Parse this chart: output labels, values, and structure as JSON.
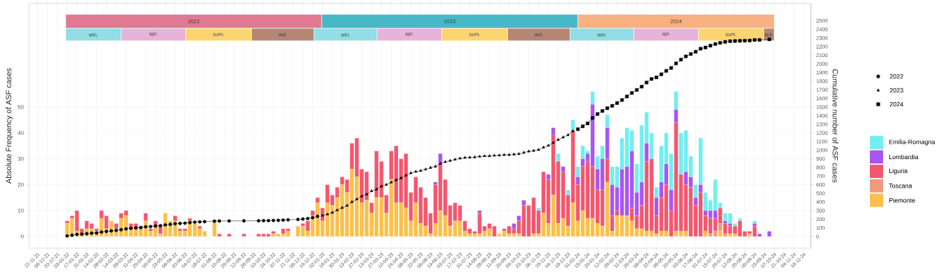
{
  "chart_data": {
    "type": "bar",
    "stacked": true,
    "ylabel": "Absolute Frequency of ASF cases",
    "y2label": "Cumulative number of ASF cases",
    "x": [
      "2022-01-03",
      "2022-01-10",
      "2022-01-17",
      "2022-01-24",
      "2022-01-31",
      "2022-02-07",
      "2022-02-14",
      "2022-02-21",
      "2022-02-28",
      "2022-03-07",
      "2022-03-14",
      "2022-03-21",
      "2022-03-28",
      "2022-04-04",
      "2022-04-11",
      "2022-04-18",
      "2022-04-25",
      "2022-05-02",
      "2022-05-09",
      "2022-05-16",
      "2022-05-23",
      "2022-05-30",
      "2022-06-06",
      "2022-06-13",
      "2022-06-20",
      "2022-06-27",
      "2022-07-04",
      "2022-07-11",
      "2022-07-18",
      "2022-07-25",
      "2022-08-01",
      "2022-08-08",
      "2022-08-15",
      "2022-08-22",
      "2022-08-29",
      "2022-09-05",
      "2022-09-12",
      "2022-09-19",
      "2022-09-26",
      "2022-10-03",
      "2022-10-10",
      "2022-10-17",
      "2022-10-24",
      "2022-10-31",
      "2022-11-07",
      "2022-11-14",
      "2022-11-21",
      "2022-11-28",
      "2022-12-05",
      "2022-12-12",
      "2022-12-19",
      "2022-12-26",
      "2023-01-02",
      "2023-01-09",
      "2023-01-16",
      "2023-01-23",
      "2023-01-30",
      "2023-02-06",
      "2023-02-13",
      "2023-02-20",
      "2023-02-27",
      "2023-03-06",
      "2023-03-13",
      "2023-03-20",
      "2023-03-27",
      "2023-04-03",
      "2023-04-10",
      "2023-04-17",
      "2023-04-24",
      "2023-05-01",
      "2023-05-08",
      "2023-05-15",
      "2023-05-22",
      "2023-05-29",
      "2023-06-05",
      "2023-06-12",
      "2023-06-19",
      "2023-06-26",
      "2023-07-03",
      "2023-07-10",
      "2023-07-17",
      "2023-07-24",
      "2023-07-31",
      "2023-08-07",
      "2023-08-14",
      "2023-08-21",
      "2023-08-28",
      "2023-09-04",
      "2023-09-11",
      "2023-09-18",
      "2023-09-25",
      "2023-10-02",
      "2023-10-09",
      "2023-10-16",
      "2023-10-23",
      "2023-10-30",
      "2023-11-06",
      "2023-11-13",
      "2023-11-20",
      "2023-11-27",
      "2023-12-04",
      "2023-12-11",
      "2023-12-18",
      "2023-12-25",
      "2024-01-01",
      "2024-01-08",
      "2024-01-15",
      "2024-01-22",
      "2024-01-29",
      "2024-02-05",
      "2024-02-12",
      "2024-02-19",
      "2024-02-26",
      "2024-03-04",
      "2024-03-11",
      "2024-03-18",
      "2024-03-25",
      "2024-04-01",
      "2024-04-08",
      "2024-04-15",
      "2024-04-22",
      "2024-04-29",
      "2024-05-06",
      "2024-05-13",
      "2024-05-20",
      "2024-05-27",
      "2024-06-03",
      "2024-06-10",
      "2024-06-17",
      "2024-06-24",
      "2024-07-01",
      "2024-07-08",
      "2024-07-15",
      "2024-07-22",
      "2024-07-29",
      "2024-08-05",
      "2024-08-12",
      "2024-08-19",
      "2024-08-26",
      "2024-09-02",
      "2024-09-09",
      "2024-09-16",
      "2024-09-23",
      "2024-09-30"
    ],
    "xlim": [
      "2021-11-10",
      "2024-11-28"
    ],
    "xticks": [
      {
        "value": "2021-11-22",
        "label": "22-11-21"
      },
      {
        "value": "2021-12-06",
        "label": "06-12-21"
      },
      {
        "value": "2021-12-20",
        "label": "20-12-21"
      },
      {
        "value": "2022-01-03",
        "label": "03-01-22"
      },
      {
        "value": "2022-01-17",
        "label": "17-01-22"
      },
      {
        "value": "2022-01-31",
        "label": "31-01-22"
      },
      {
        "value": "2022-02-14",
        "label": "14-02-22"
      },
      {
        "value": "2022-02-28",
        "label": "28-02-22"
      },
      {
        "value": "2022-03-14",
        "label": "14-03-22"
      },
      {
        "value": "2022-03-28",
        "label": "28-03-22"
      },
      {
        "value": "2022-04-11",
        "label": "11-04-22"
      },
      {
        "value": "2022-04-25",
        "label": "25-04-22"
      },
      {
        "value": "2022-05-09",
        "label": "09-05-22"
      },
      {
        "value": "2022-05-23",
        "label": "23-05-22"
      },
      {
        "value": "2022-06-06",
        "label": "06-06-22"
      },
      {
        "value": "2022-06-20",
        "label": "20-06-22"
      },
      {
        "value": "2022-07-04",
        "label": "04-07-22"
      },
      {
        "value": "2022-07-18",
        "label": "18-07-22"
      },
      {
        "value": "2022-08-01",
        "label": "01-08-22"
      },
      {
        "value": "2022-08-15",
        "label": "15-08-22"
      },
      {
        "value": "2022-08-29",
        "label": "29-08-22"
      },
      {
        "value": "2022-09-12",
        "label": "12-09-22"
      },
      {
        "value": "2022-09-26",
        "label": "26-09-22"
      },
      {
        "value": "2022-10-10",
        "label": "10-10-22"
      },
      {
        "value": "2022-10-24",
        "label": "24-10-22"
      },
      {
        "value": "2022-11-07",
        "label": "07-11-22"
      },
      {
        "value": "2022-11-21",
        "label": "21-11-22"
      },
      {
        "value": "2022-12-05",
        "label": "05-12-22"
      },
      {
        "value": "2022-12-19",
        "label": "19-12-22"
      },
      {
        "value": "2023-01-02",
        "label": "02-01-23"
      },
      {
        "value": "2023-01-16",
        "label": "16-01-23"
      },
      {
        "value": "2023-01-30",
        "label": "30-01-23"
      },
      {
        "value": "2023-02-13",
        "label": "13-02-23"
      },
      {
        "value": "2023-02-27",
        "label": "27-02-23"
      },
      {
        "value": "2023-03-13",
        "label": "13-03-23"
      },
      {
        "value": "2023-03-27",
        "label": "27-03-23"
      },
      {
        "value": "2023-04-10",
        "label": "10-04-23"
      },
      {
        "value": "2023-04-24",
        "label": "24-04-23"
      },
      {
        "value": "2023-05-08",
        "label": "08-05-23"
      },
      {
        "value": "2023-05-22",
        "label": "22-05-23"
      },
      {
        "value": "2023-06-05",
        "label": "05-06-23"
      },
      {
        "value": "2023-06-19",
        "label": "19-06-23"
      },
      {
        "value": "2023-07-03",
        "label": "03-07-23"
      },
      {
        "value": "2023-07-17",
        "label": "17-07-23"
      },
      {
        "value": "2023-07-31",
        "label": "31-07-23"
      },
      {
        "value": "2023-08-14",
        "label": "14-08-23"
      },
      {
        "value": "2023-08-28",
        "label": "28-08-23"
      },
      {
        "value": "2023-09-11",
        "label": "11-09-23"
      },
      {
        "value": "2023-09-25",
        "label": "25-09-23"
      },
      {
        "value": "2023-10-09",
        "label": "09-10-23"
      },
      {
        "value": "2023-10-23",
        "label": "23-10-23"
      },
      {
        "value": "2023-11-06",
        "label": "06-11-23"
      },
      {
        "value": "2023-11-20",
        "label": "20-11-23"
      },
      {
        "value": "2023-12-04",
        "label": "04-12-23"
      },
      {
        "value": "2023-12-18",
        "label": "18-12-23"
      },
      {
        "value": "2024-01-01",
        "label": "01-01-24"
      },
      {
        "value": "2024-01-15",
        "label": "15-01-24"
      },
      {
        "value": "2024-01-29",
        "label": "29-01-24"
      },
      {
        "value": "2024-02-12",
        "label": "12-02-24"
      },
      {
        "value": "2024-02-26",
        "label": "26-02-24"
      },
      {
        "value": "2024-03-11",
        "label": "11-03-24"
      },
      {
        "value": "2024-03-25",
        "label": "25-03-24"
      },
      {
        "value": "2024-04-08",
        "label": "08-04-24"
      },
      {
        "value": "2024-04-22",
        "label": "22-04-24"
      },
      {
        "value": "2024-05-06",
        "label": "06-05-24"
      },
      {
        "value": "2024-05-20",
        "label": "20-05-24"
      },
      {
        "value": "2024-06-03",
        "label": "03-06-24"
      },
      {
        "value": "2024-06-17",
        "label": "17-06-24"
      },
      {
        "value": "2024-07-01",
        "label": "01-07-24"
      },
      {
        "value": "2024-07-15",
        "label": "15-07-24"
      },
      {
        "value": "2024-07-29",
        "label": "29-07-24"
      },
      {
        "value": "2024-08-12",
        "label": "12-08-24"
      },
      {
        "value": "2024-08-26",
        "label": "26-08-24"
      },
      {
        "value": "2024-09-09",
        "label": "09-09-24"
      },
      {
        "value": "2024-09-23",
        "label": "23-09-24"
      },
      {
        "value": "2024-10-07",
        "label": "07-10-24"
      },
      {
        "value": "2024-10-21",
        "label": "21-10-24"
      },
      {
        "value": "2024-11-04",
        "label": "04-11-24"
      },
      {
        "value": "2024-11-18",
        "label": "18-11-24"
      }
    ],
    "ylim": [
      -4.5,
      90
    ],
    "yticks": [
      0,
      10,
      20,
      30,
      40,
      50
    ],
    "y2lim": [
      -135,
      2700
    ],
    "y2ticks": [
      0,
      100,
      200,
      300,
      400,
      500,
      600,
      700,
      800,
      900,
      1000,
      1100,
      1200,
      1300,
      1400,
      1500,
      1600,
      1700,
      1800,
      1900,
      2000,
      2100,
      2200,
      2300,
      2400,
      2500
    ],
    "grid": true,
    "legend": "right",
    "series": [
      {
        "name": "Piemonte",
        "color": "#fbc04b",
        "values": [
          5,
          7,
          2,
          1,
          3,
          3,
          2,
          7,
          3,
          6,
          3,
          7,
          8,
          3,
          3,
          3,
          6,
          2,
          4,
          1,
          9,
          6,
          6,
          2,
          2,
          6,
          5,
          3,
          2,
          0,
          6,
          0,
          0,
          0,
          0,
          0,
          0,
          0,
          0,
          0,
          0,
          0,
          1,
          1,
          1,
          2,
          0,
          4,
          4,
          2,
          8,
          13,
          6,
          13,
          12,
          15,
          20,
          17,
          26,
          23,
          13,
          14,
          9,
          15,
          15,
          9,
          22,
          13,
          13,
          11,
          6,
          13,
          5,
          4,
          1,
          5,
          10,
          8,
          4,
          6,
          6,
          2,
          1,
          1,
          1,
          2,
          3,
          0,
          1,
          2,
          1,
          1,
          1,
          0,
          0,
          1,
          1,
          9,
          5,
          16,
          5,
          7,
          4,
          13,
          6,
          10,
          7,
          7,
          5,
          4,
          21,
          2,
          8,
          8,
          8,
          6,
          3,
          3,
          2,
          2,
          1,
          2,
          2,
          0,
          2,
          2,
          2,
          0,
          0,
          0,
          2,
          0,
          0,
          2,
          0,
          1,
          1,
          0,
          0,
          1,
          0,
          0,
          0,
          0
        ]
      },
      {
        "name": "Toscana",
        "color": "#ee9a7f",
        "values": [
          0,
          0,
          0,
          0,
          0,
          0,
          0,
          0,
          0,
          0,
          0,
          0,
          0,
          0,
          0,
          0,
          0,
          0,
          0,
          0,
          0,
          0,
          0,
          0,
          0,
          0,
          0,
          0,
          0,
          0,
          0,
          0,
          0,
          0,
          0,
          0,
          0,
          0,
          0,
          0,
          0,
          0,
          0,
          0,
          0,
          0,
          0,
          0,
          0,
          0,
          0,
          0,
          0,
          0,
          0,
          0,
          0,
          0,
          0,
          0,
          0,
          0,
          0,
          0,
          0,
          0,
          0,
          0,
          0,
          0,
          0,
          0,
          0,
          0,
          0,
          0,
          0,
          0,
          0,
          0,
          0,
          0,
          0,
          0,
          0,
          0,
          0,
          0,
          0,
          0,
          0,
          0,
          0,
          0,
          0,
          0,
          0,
          0,
          0,
          0,
          0,
          0,
          0,
          0,
          0,
          0,
          0,
          0,
          0,
          0,
          0,
          0,
          0,
          0,
          0,
          0,
          0,
          0,
          0,
          0,
          0,
          0,
          0,
          0,
          0,
          0,
          0,
          0,
          0,
          0,
          0,
          1,
          2,
          3,
          1,
          0,
          0,
          0,
          0,
          0,
          0,
          0,
          0,
          0
        ]
      },
      {
        "name": "Liguria",
        "color": "#f4566e",
        "values": [
          1,
          1,
          8,
          2,
          3,
          2,
          1,
          3,
          5,
          0,
          2,
          2,
          2,
          2,
          2,
          1,
          3,
          1,
          2,
          3,
          0,
          0,
          2,
          1,
          1,
          1,
          0,
          1,
          0,
          0,
          0,
          1,
          0,
          1,
          0,
          0,
          1,
          0,
          0,
          1,
          1,
          1,
          1,
          0,
          2,
          1,
          0,
          0,
          1,
          4,
          2,
          2,
          5,
          7,
          4,
          4,
          3,
          5,
          10,
          15,
          13,
          11,
          4,
          18,
          14,
          7,
          11,
          22,
          17,
          21,
          11,
          10,
          14,
          11,
          8,
          15,
          18,
          14,
          8,
          7,
          6,
          4,
          2,
          1,
          8,
          2,
          2,
          4,
          0,
          1,
          3,
          2,
          5,
          12,
          12,
          14,
          9,
          16,
          17,
          23,
          24,
          18,
          12,
          28,
          14,
          17,
          22,
          20,
          13,
          14,
          9,
          6,
          2,
          0,
          0,
          5,
          5,
          9,
          27,
          28,
          7,
          13,
          18,
          10,
          42,
          22,
          18,
          19,
          12,
          17,
          6,
          6,
          5,
          6,
          4,
          3,
          3,
          6,
          2,
          1,
          4,
          0,
          0,
          0
        ]
      },
      {
        "name": "Lombardia",
        "color": "#a855f2",
        "values": [
          0,
          0,
          0,
          0,
          0,
          0,
          0,
          0,
          0,
          0,
          0,
          0,
          0,
          0,
          0,
          0,
          0,
          0,
          0,
          0,
          0,
          0,
          0,
          0,
          0,
          0,
          0,
          0,
          0,
          0,
          0,
          0,
          0,
          0,
          0,
          0,
          0,
          0,
          0,
          0,
          0,
          0,
          0,
          0,
          0,
          0,
          0,
          0,
          0,
          0,
          0,
          0,
          0,
          0,
          0,
          0,
          0,
          0,
          0,
          0,
          0,
          0,
          0,
          0,
          0,
          0,
          0,
          0,
          0,
          0,
          0,
          0,
          0,
          0,
          0,
          1,
          4,
          0,
          0,
          0,
          0,
          0,
          0,
          0,
          1,
          0,
          0,
          0,
          0,
          0,
          0,
          2,
          2,
          2,
          0,
          0,
          0,
          0,
          2,
          3,
          0,
          2,
          0,
          0,
          3,
          3,
          3,
          24,
          8,
          12,
          12,
          12,
          9,
          18,
          19,
          22,
          9,
          9,
          7,
          0,
          7,
          6,
          8,
          8,
          5,
          0,
          5,
          4,
          3,
          3,
          2,
          3,
          3,
          0,
          1,
          1,
          0,
          0,
          0,
          0,
          1,
          1,
          0,
          2
        ]
      },
      {
        "name": "Emilia-Romagna",
        "color": "#70eef0",
        "values": [
          0,
          0,
          0,
          0,
          0,
          0,
          0,
          0,
          0,
          0,
          0,
          0,
          0,
          0,
          0,
          0,
          0,
          0,
          0,
          0,
          0,
          0,
          0,
          0,
          0,
          0,
          0,
          0,
          0,
          0,
          0,
          0,
          0,
          0,
          0,
          0,
          0,
          0,
          0,
          0,
          0,
          0,
          0,
          0,
          0,
          0,
          0,
          0,
          0,
          0,
          0,
          0,
          0,
          0,
          0,
          0,
          0,
          0,
          0,
          0,
          0,
          0,
          0,
          0,
          0,
          0,
          0,
          0,
          0,
          0,
          0,
          0,
          0,
          0,
          0,
          0,
          0,
          0,
          0,
          0,
          0,
          0,
          0,
          0,
          0,
          0,
          0,
          0,
          0,
          0,
          0,
          0,
          0,
          0,
          0,
          0,
          1,
          0,
          0,
          0,
          3,
          0,
          2,
          4,
          4,
          5,
          1,
          5,
          5,
          5,
          5,
          7,
          8,
          12,
          15,
          8,
          11,
          22,
          12,
          10,
          4,
          14,
          12,
          14,
          7,
          16,
          16,
          8,
          5,
          18,
          7,
          4,
          12,
          2,
          3,
          4,
          1,
          1,
          0,
          0,
          1,
          0,
          0,
          0
        ]
      },
      {
        "name": "2022",
        "type": "line",
        "axis": "y2",
        "color": "#000000",
        "marker": "circle",
        "line_style": "solid",
        "x": [
          "2022-01-03",
          "2022-01-10",
          "2022-01-17",
          "2022-01-24",
          "2022-01-31",
          "2022-02-07",
          "2022-02-14",
          "2022-02-21",
          "2022-02-28",
          "2022-03-07",
          "2022-03-14",
          "2022-03-21",
          "2022-03-28",
          "2022-04-04",
          "2022-04-11",
          "2022-04-18",
          "2022-04-25",
          "2022-05-02",
          "2022-05-09",
          "2022-05-16",
          "2022-05-23",
          "2022-05-30",
          "2022-06-06",
          "2022-06-13",
          "2022-06-20",
          "2022-06-27",
          "2022-07-04",
          "2022-07-11",
          "2022-07-18",
          "2022-08-01",
          "2022-08-08",
          "2022-08-22",
          "2022-09-12",
          "2022-10-03",
          "2022-10-10",
          "2022-10-17",
          "2022-10-24",
          "2022-10-31",
          "2022-11-07",
          "2022-11-14",
          "2022-11-28",
          "2022-12-05",
          "2022-12-12",
          "2022-12-19",
          "2022-12-26"
        ],
        "values": [
          6,
          14,
          24,
          27,
          33,
          38,
          41,
          51,
          59,
          65,
          70,
          79,
          89,
          94,
          99,
          103,
          112,
          115,
          121,
          125,
          134,
          140,
          148,
          151,
          154,
          161,
          166,
          170,
          172,
          178,
          179,
          180,
          181,
          182,
          183,
          184,
          186,
          187,
          190,
          193,
          197,
          202,
          208,
          218,
          233
        ]
      },
      {
        "name": "2023",
        "type": "line",
        "axis": "y2",
        "color": "#000000",
        "marker": "triangle",
        "line_style": "solid",
        "x": [
          "2023-01-02",
          "2023-01-09",
          "2023-01-16",
          "2023-01-23",
          "2023-01-30",
          "2023-02-06",
          "2023-02-13",
          "2023-02-20",
          "2023-02-27",
          "2023-03-06",
          "2023-03-13",
          "2023-03-20",
          "2023-03-27",
          "2023-04-03",
          "2023-04-10",
          "2023-04-17",
          "2023-04-24",
          "2023-05-01",
          "2023-05-08",
          "2023-05-15",
          "2023-05-22",
          "2023-05-29",
          "2023-06-05",
          "2023-06-12",
          "2023-06-19",
          "2023-06-26",
          "2023-07-03",
          "2023-07-10",
          "2023-07-17",
          "2023-07-24",
          "2023-07-31",
          "2023-08-07",
          "2023-08-14",
          "2023-08-21",
          "2023-08-28",
          "2023-09-04",
          "2023-09-11",
          "2023-09-18",
          "2023-09-25",
          "2023-10-02",
          "2023-10-09",
          "2023-10-16",
          "2023-10-23",
          "2023-10-30",
          "2023-11-06",
          "2023-11-13",
          "2023-11-20",
          "2023-11-27",
          "2023-12-04",
          "2023-12-11",
          "2023-12-18",
          "2023-12-25"
        ],
        "values": [
          243,
          257,
          276,
          305,
          332,
          357,
          400,
          432,
          465,
          487,
          527,
          546,
          581,
          600,
          627,
          654,
          676,
          708,
          735,
          751,
          762,
          778,
          797,
          811,
          844,
          864,
          878,
          892,
          905,
          913,
          916,
          919,
          927,
          933,
          933,
          938,
          941,
          946,
          946,
          952,
          957,
          972,
          986,
          994,
          1005,
          1032,
          1054,
          1086,
          1121,
          1149,
          1176,
          1221
        ]
      },
      {
        "name": "2024",
        "type": "line",
        "axis": "y2",
        "color": "#000000",
        "marker": "square",
        "line_style": "solid",
        "x": [
          "2024-01-01",
          "2024-01-08",
          "2024-01-15",
          "2024-01-22",
          "2024-01-29",
          "2024-02-05",
          "2024-02-12",
          "2024-02-19",
          "2024-02-26",
          "2024-03-04",
          "2024-03-11",
          "2024-03-18",
          "2024-03-25",
          "2024-04-01",
          "2024-04-08",
          "2024-04-15",
          "2024-04-22",
          "2024-04-29",
          "2024-05-06",
          "2024-05-13",
          "2024-05-20",
          "2024-05-27",
          "2024-06-03",
          "2024-06-10",
          "2024-06-17",
          "2024-06-24",
          "2024-07-01",
          "2024-07-08",
          "2024-07-15",
          "2024-07-22",
          "2024-07-29",
          "2024-08-05",
          "2024-08-12",
          "2024-08-19",
          "2024-08-26",
          "2024-09-02",
          "2024-09-09",
          "2024-09-16",
          "2024-09-30"
        ],
        "values": [
          1243,
          1276,
          1310,
          1373,
          1419,
          1454,
          1486,
          1514,
          1546,
          1581,
          1622,
          1663,
          1698,
          1736,
          1784,
          1825,
          1844,
          1879,
          1919,
          1952,
          2006,
          2049,
          2087,
          2114,
          2141,
          2176,
          2190,
          2211,
          2230,
          2244,
          2255,
          2263,
          2265,
          2267,
          2269,
          2271,
          2277,
          2278,
          2284
        ]
      }
    ],
    "bands": [
      {
        "axis": "x",
        "from": "2022-01-01",
        "to": "2023-01-01",
        "label": "2022",
        "color": "#e07a93"
      },
      {
        "axis": "x",
        "from": "2023-01-01",
        "to": "2024-01-01",
        "label": "2023",
        "color": "#47b8c6"
      },
      {
        "axis": "x",
        "from": "2024-01-01",
        "to": "2024-10-07",
        "label": "2024",
        "color": "#f7b183"
      },
      {
        "axis": "x",
        "from": "2022-01-01",
        "to": "2022-03-21",
        "label": "win.",
        "color": "#92dde6"
      },
      {
        "axis": "x",
        "from": "2022-03-21",
        "to": "2022-06-21",
        "label": "spr.",
        "color": "#e6b3da"
      },
      {
        "axis": "x",
        "from": "2022-06-21",
        "to": "2022-09-23",
        "label": "sum.",
        "color": "#fcd570"
      },
      {
        "axis": "x",
        "from": "2022-09-23",
        "to": "2022-12-21",
        "label": "aut.",
        "color": "#b58674"
      },
      {
        "axis": "x",
        "from": "2022-12-21",
        "to": "2023-03-21",
        "label": "win.",
        "color": "#92dde6"
      },
      {
        "axis": "x",
        "from": "2023-03-21",
        "to": "2023-06-21",
        "label": "spr.",
        "color": "#e6b3da"
      },
      {
        "axis": "x",
        "from": "2023-06-21",
        "to": "2023-09-23",
        "label": "sum.",
        "color": "#fcd570"
      },
      {
        "axis": "x",
        "from": "2023-09-23",
        "to": "2023-12-21",
        "label": "aut.",
        "color": "#b58674"
      },
      {
        "axis": "x",
        "from": "2023-12-21",
        "to": "2024-03-21",
        "label": "win.",
        "color": "#92dde6"
      },
      {
        "axis": "x",
        "from": "2024-03-21",
        "to": "2024-06-21",
        "label": "spr.",
        "color": "#e6b3da"
      },
      {
        "axis": "x",
        "from": "2024-06-21",
        "to": "2024-09-22",
        "label": "sum.",
        "color": "#fcd570"
      },
      {
        "axis": "x",
        "from": "2024-09-22",
        "to": "2024-10-07",
        "label": "aut.",
        "color": "#b58674"
      }
    ]
  }
}
